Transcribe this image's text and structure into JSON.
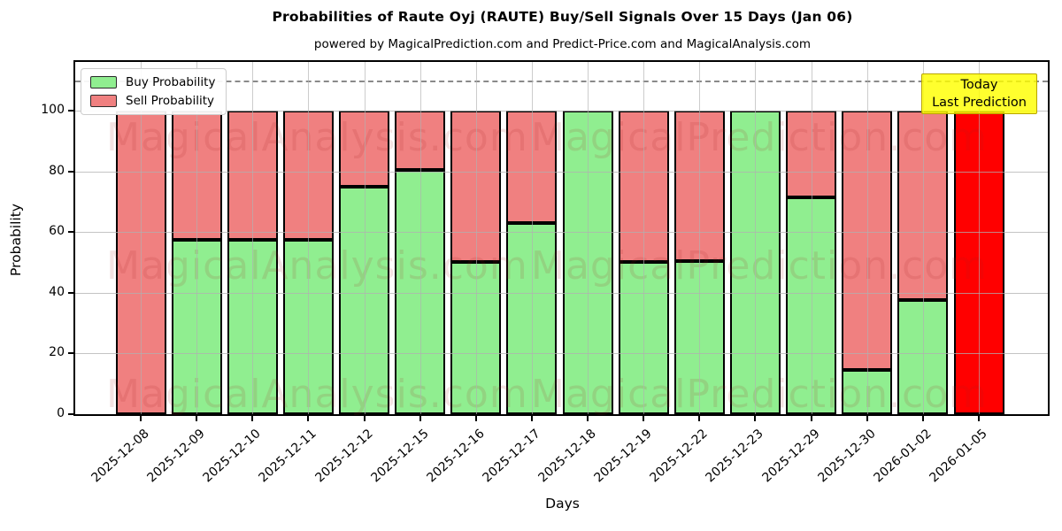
{
  "header": {
    "title": "Probabilities of Raute Oyj (RAUTE) Buy/Sell Signals Over 15 Days (Jan 06)",
    "subtitle": "powered by MagicalPrediction.com and Predict-Price.com and MagicalAnalysis.com"
  },
  "annotation_box": {
    "line1": "Today",
    "line2": "Last Prediction",
    "bg_color": "#ffff00"
  },
  "watermarks": {
    "left_text": "MagicalAnalysis.com",
    "right_text": "MagicalPrediction.com"
  },
  "colors": {
    "buy": "#90ee90",
    "sell": "#f08080",
    "today_bar": "#ff0000",
    "grid": "#b0b0b0"
  },
  "chart_data": {
    "type": "bar",
    "stacked": true,
    "title": "Probabilities of Raute Oyj (RAUTE) Buy/Sell Signals Over 15 Days (Jan 06)",
    "xlabel": "Days",
    "ylabel": "Probability",
    "ylim": [
      0,
      116
    ],
    "yticks": [
      0,
      20,
      40,
      60,
      80,
      100
    ],
    "dashed_line_y": 110,
    "grid": true,
    "legend_position": "upper left",
    "categories": [
      "2025-12-08",
      "2025-12-09",
      "2025-12-10",
      "2025-12-11",
      "2025-12-12",
      "2025-12-15",
      "2025-12-16",
      "2025-12-17",
      "2025-12-18",
      "2025-12-19",
      "2025-12-22",
      "2025-12-23",
      "2025-12-29",
      "2025-12-30",
      "2026-01-02",
      "2026-01-05"
    ],
    "series": [
      {
        "name": "Buy Probability",
        "color": "#90ee90",
        "values": [
          0,
          57.5,
          57.5,
          57.5,
          75,
          80.5,
          50,
          63,
          100,
          50,
          50.5,
          100,
          71.5,
          14.5,
          37.5,
          0
        ]
      },
      {
        "name": "Sell Probability",
        "color": "#f08080",
        "values": [
          100,
          42.5,
          42.5,
          42.5,
          25,
          19.5,
          50,
          37,
          0,
          50,
          49.5,
          0,
          28.5,
          85.5,
          62.5,
          100
        ]
      }
    ],
    "last_bar_highlight_color": "#ff0000"
  }
}
